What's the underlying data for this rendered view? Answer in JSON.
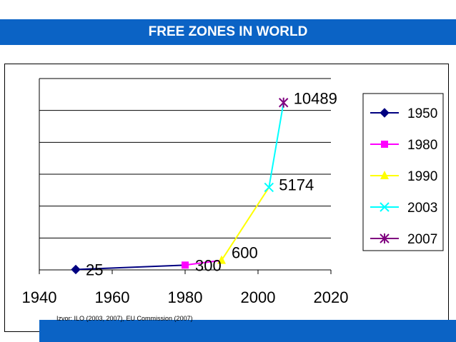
{
  "header": {
    "title": "FREE ZONES IN WORLD"
  },
  "colors": {
    "banner": "#0b63c5"
  },
  "chart_data": {
    "type": "line",
    "title": "",
    "xlabel": "",
    "ylabel": "",
    "xlim": [
      1940,
      2020
    ],
    "ylim": [
      0,
      12000
    ],
    "x_ticks": [
      "1940",
      "1960",
      "1980",
      "2000",
      "2020"
    ],
    "grid": true,
    "legend_position": "right",
    "series": [
      {
        "name": "1950",
        "color": "#000080",
        "marker": "diamond",
        "points": [
          [
            1950,
            25
          ],
          [
            1980,
            300
          ]
        ],
        "label": "25"
      },
      {
        "name": "1980",
        "color": "#ff00ff",
        "marker": "square",
        "points": [
          [
            1980,
            300
          ],
          [
            1990,
            600
          ]
        ],
        "label": "300"
      },
      {
        "name": "1990",
        "color": "#ffff00",
        "marker": "triangle",
        "points": [
          [
            1990,
            600
          ],
          [
            2003,
            5174
          ]
        ],
        "label": "600"
      },
      {
        "name": "2003",
        "color": "#00ffff",
        "marker": "x",
        "points": [
          [
            2003,
            5174
          ],
          [
            2007,
            10489
          ]
        ],
        "label": "5174"
      },
      {
        "name": "2007",
        "color": "#800080",
        "marker": "star",
        "points": [
          [
            2007,
            10489
          ]
        ],
        "label": "10489"
      }
    ],
    "source_note": "Izvor: ILO (2003, 2007), EU Commission (2007)"
  }
}
